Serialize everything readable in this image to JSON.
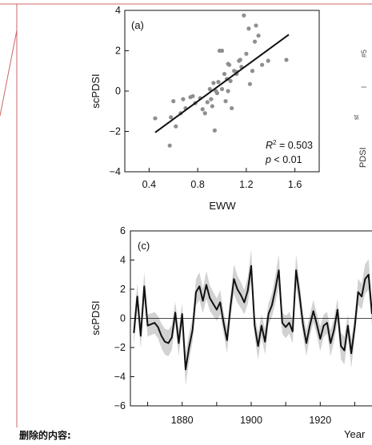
{
  "caption": "删除的内容:",
  "colors": {
    "frame": "#cc6666",
    "points": "#8f8f8f",
    "line": "#111111",
    "band": "#d2d2d2"
  },
  "chart_data": [
    {
      "type": "scatter",
      "panel_label": "(a)",
      "xlabel": "EWW",
      "ylabel": "scPDSI",
      "xlim": [
        0.2,
        1.8
      ],
      "ylim": [
        -4,
        4
      ],
      "xticks": [
        "0.4",
        "0.8",
        "1.2",
        "1.6"
      ],
      "yticks": [
        "−4",
        "−2",
        "0",
        "2",
        "4"
      ],
      "annotation_r2_prefix": "R",
      "annotation_r2_sup": "2",
      "annotation_r2_value": " = 0.503",
      "annotation_p": "p",
      "annotation_p_value": " < 0.01",
      "fit_line": {
        "x": [
          0.45,
          1.55
        ],
        "y": [
          -2.05,
          2.8
        ]
      },
      "points": [
        [
          0.45,
          -1.35
        ],
        [
          0.57,
          -2.7
        ],
        [
          0.58,
          -1.3
        ],
        [
          0.6,
          -0.5
        ],
        [
          0.62,
          -1.75
        ],
        [
          0.66,
          -1.1
        ],
        [
          0.68,
          -0.4
        ],
        [
          0.7,
          -0.85
        ],
        [
          0.74,
          -0.3
        ],
        [
          0.76,
          -0.25
        ],
        [
          0.78,
          -0.6
        ],
        [
          0.82,
          -0.35
        ],
        [
          0.84,
          -0.9
        ],
        [
          0.86,
          -1.1
        ],
        [
          0.88,
          -0.55
        ],
        [
          0.9,
          0.1
        ],
        [
          0.91,
          -0.4
        ],
        [
          0.92,
          -0.75
        ],
        [
          0.94,
          -1.95
        ],
        [
          0.95,
          0.0
        ],
        [
          0.96,
          -0.1
        ],
        [
          0.97,
          0.45
        ],
        [
          0.98,
          2.0
        ],
        [
          1.0,
          2.0
        ],
        [
          1.0,
          0.1
        ],
        [
          1.02,
          0.85
        ],
        [
          1.03,
          -0.5
        ],
        [
          1.04,
          0.6
        ],
        [
          1.05,
          0.0
        ],
        [
          1.06,
          1.3
        ],
        [
          1.07,
          0.5
        ],
        [
          1.08,
          -0.85
        ],
        [
          1.1,
          1.0
        ],
        [
          1.12,
          0.85
        ],
        [
          1.14,
          1.5
        ],
        [
          1.15,
          1.55
        ],
        [
          1.16,
          1.2
        ],
        [
          1.18,
          3.75
        ],
        [
          1.2,
          1.85
        ],
        [
          1.22,
          3.1
        ],
        [
          1.23,
          0.35
        ],
        [
          1.25,
          1.0
        ],
        [
          1.27,
          2.45
        ],
        [
          1.28,
          3.25
        ],
        [
          1.3,
          2.75
        ],
        [
          1.33,
          1.3
        ],
        [
          1.38,
          1.5
        ],
        [
          1.05,
          1.35
        ],
        [
          0.93,
          0.4
        ],
        [
          1.12,
          0.95
        ],
        [
          1.53,
          1.55
        ]
      ]
    },
    {
      "type": "line",
      "panel_label": "(c)",
      "xlabel": "Year",
      "ylabel": "scPDSI",
      "xlim": [
        1865,
        1935
      ],
      "ylim": [
        -6,
        6
      ],
      "xticks": [
        "1880",
        "1900",
        "1920"
      ],
      "yticks": [
        "−6",
        "−4",
        "−2",
        "0",
        "2",
        "4",
        "6"
      ],
      "x": [
        1866,
        1867,
        1868,
        1869,
        1870,
        1871,
        1872,
        1873,
        1874,
        1875,
        1876,
        1877,
        1878,
        1879,
        1880,
        1881,
        1882,
        1883,
        1884,
        1885,
        1886,
        1887,
        1888,
        1889,
        1890,
        1891,
        1892,
        1893,
        1894,
        1895,
        1896,
        1897,
        1898,
        1899,
        1900,
        1901,
        1902,
        1903,
        1904,
        1905,
        1906,
        1907,
        1908,
        1909,
        1910,
        1911,
        1912,
        1913,
        1914,
        1915,
        1916,
        1917,
        1918,
        1919,
        1920,
        1921,
        1922,
        1923,
        1924,
        1925,
        1926,
        1927,
        1928,
        1929,
        1930,
        1931,
        1932,
        1933,
        1934,
        1935
      ],
      "y": [
        -1.0,
        1.5,
        -1.2,
        2.2,
        -0.5,
        -0.4,
        -0.3,
        -0.6,
        -1.2,
        -1.6,
        -1.7,
        -1.3,
        0.4,
        -1.7,
        0.3,
        -3.5,
        -2.0,
        -0.8,
        1.8,
        2.2,
        1.2,
        2.3,
        1.4,
        1.0,
        0.6,
        1.1,
        -0.3,
        -1.5,
        0.8,
        2.7,
        2.0,
        1.6,
        1.1,
        1.9,
        3.6,
        -0.5,
        -1.9,
        -0.5,
        -1.6,
        0.3,
        0.9,
        2.0,
        3.3,
        -0.3,
        -0.6,
        -0.3,
        -0.9,
        3.3,
        1.6,
        -0.4,
        -1.7,
        -0.5,
        0.5,
        -0.4,
        -1.4,
        -0.5,
        -0.3,
        -1.7,
        -0.8,
        0.6,
        -1.9,
        -2.2,
        -0.5,
        -2.4,
        -0.6,
        1.8,
        1.5,
        2.7,
        3.0,
        0.3
      ]
    }
  ]
}
